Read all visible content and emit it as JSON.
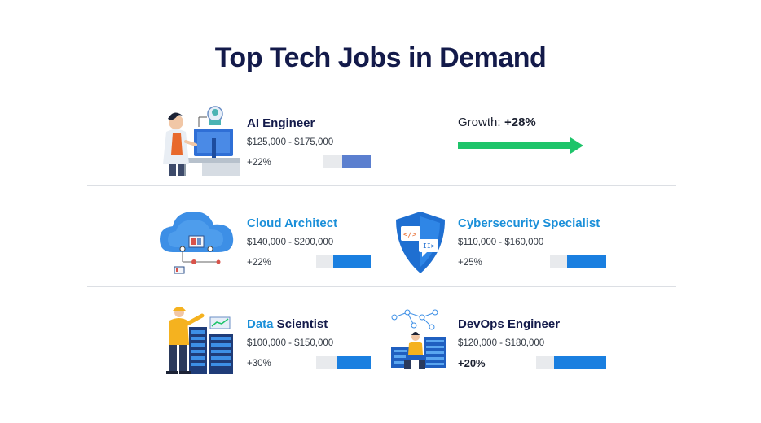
{
  "title": "Top Tech Jobs in Demand",
  "growth_callout": {
    "label": "Growth:",
    "value": "+28%",
    "color": "#1ec46a"
  },
  "jobs": [
    {
      "name": "AI Engineer",
      "name_color": "#131a4a",
      "salary": "$125,000 - $175,000",
      "growth": "+22%",
      "bar_fraction": 0.6,
      "bar_color": "#5b7fcf",
      "illustration": "ai-engineer-illustration"
    },
    {
      "name": "Cloud Architect",
      "name_color": "#1a8fd9",
      "salary": "$140,000 - $200,000",
      "growth": "+22%",
      "bar_fraction": 0.68,
      "bar_color": "#1a7fe0",
      "illustration": "cloud-illustration"
    },
    {
      "name": "Cybersecurity Specialist",
      "name_color": "#1a8fd9",
      "salary": "$110,000 - $160,000",
      "growth": "+25%",
      "bar_fraction": 0.7,
      "bar_color": "#1a7fe0",
      "illustration": "shield-illustration"
    },
    {
      "name_part1": "Data",
      "name_part2": " Scientist",
      "name_color": "#1a8fd9",
      "name_color2": "#131a4a",
      "salary": "$100,000 - $150,000",
      "growth": "+30%",
      "bar_fraction": 0.62,
      "bar_color": "#1a7fe0",
      "illustration": "data-scientist-illustration"
    },
    {
      "name": "DevOps Engineer",
      "name_color": "#131a4a",
      "salary": "$120,000 - $180,000",
      "growth": "+20%",
      "bar_fraction": 0.74,
      "bar_color": "#1a7fe0",
      "illustration": "devops-illustration"
    }
  ]
}
